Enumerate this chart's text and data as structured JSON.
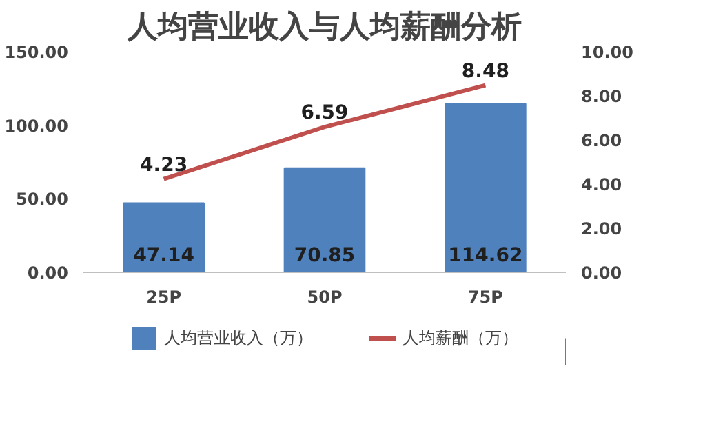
{
  "chart_data": {
    "type": "bar",
    "title": "人均营业收入与人均薪酬分析",
    "categories": [
      "25P",
      "50P",
      "75P"
    ],
    "series": [
      {
        "name": "人均营业收入（万）",
        "type": "bar",
        "color": "#4f81bd",
        "values": [
          47.14,
          70.85,
          114.62
        ]
      },
      {
        "name": "人均薪酬（万）",
        "type": "line",
        "axis": "y2",
        "color": "#c0504d",
        "values": [
          4.23,
          6.59,
          8.48
        ]
      }
    ],
    "ylim": [
      0,
      150
    ],
    "yticks": [
      {
        "value": 0,
        "label": "0.00"
      },
      {
        "value": 50,
        "label": "50.00"
      },
      {
        "value": 100,
        "label": "100.00"
      },
      {
        "value": 150,
        "label": "150.00"
      }
    ],
    "y2lim": [
      0,
      10
    ],
    "y2ticks": [
      {
        "value": 0,
        "label": "0.00"
      },
      {
        "value": 2,
        "label": "2.00"
      },
      {
        "value": 4,
        "label": "4.00"
      },
      {
        "value": 6,
        "label": "6.00"
      },
      {
        "value": 8,
        "label": "8.00"
      },
      {
        "value": 10,
        "label": "10.00"
      }
    ],
    "data_labels": true,
    "grid": false,
    "legend": "bottom"
  }
}
